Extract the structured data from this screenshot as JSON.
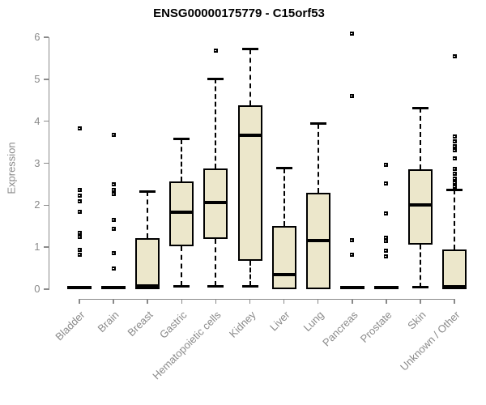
{
  "chart_data": {
    "type": "boxplot",
    "title": "ENSG00000175779 - C15orf53",
    "xlabel": "",
    "ylabel": "Expression",
    "ylim": [
      0,
      6
    ],
    "yticks": [
      0,
      1,
      2,
      3,
      4,
      5,
      6
    ],
    "grid": false,
    "legend": "none",
    "categories": [
      "Bladder",
      "Brain",
      "Breast",
      "Gastric",
      "Hematopoietic cells",
      "Kidney",
      "Liver",
      "Lung",
      "Pancreas",
      "Prostate",
      "Skin",
      "Unknown / Other"
    ],
    "boxes": [
      {
        "category": "Bladder",
        "low": 0,
        "q1": 0,
        "median": 0.04,
        "q3": 0.08,
        "high": 0.08,
        "outliers": [
          3.82,
          2.37,
          2.22,
          2.1,
          1.85,
          1.35,
          1.25,
          0.93,
          0.82
        ]
      },
      {
        "category": "Brain",
        "low": 0,
        "q1": 0,
        "median": 0.04,
        "q3": 0.08,
        "high": 0.08,
        "outliers": [
          3.67,
          2.5,
          2.36,
          2.26,
          1.64,
          1.43,
          0.85,
          0.49
        ]
      },
      {
        "category": "Breast",
        "low": 0,
        "q1": 0,
        "median": 0.08,
        "q3": 1.22,
        "high": 2.33,
        "outliers": []
      },
      {
        "category": "Gastric",
        "low": 0.07,
        "q1": 1.02,
        "median": 1.83,
        "q3": 2.57,
        "high": 3.57,
        "outliers": []
      },
      {
        "category": "Hematopoietic cells",
        "low": 0.07,
        "q1": 1.2,
        "median": 2.06,
        "q3": 2.87,
        "high": 5.01,
        "outliers": [
          5.68
        ]
      },
      {
        "category": "Kidney",
        "low": 0.07,
        "q1": 0.68,
        "median": 3.67,
        "q3": 4.37,
        "high": 5.72,
        "outliers": []
      },
      {
        "category": "Liver",
        "low": 0,
        "q1": 0,
        "median": 0.35,
        "q3": 1.5,
        "high": 2.88,
        "outliers": []
      },
      {
        "category": "Lung",
        "low": 0,
        "q1": 0,
        "median": 1.16,
        "q3": 2.29,
        "high": 3.94,
        "outliers": []
      },
      {
        "category": "Pancreas",
        "low": 0,
        "q1": 0,
        "median": 0.04,
        "q3": 0.08,
        "high": 0.08,
        "outliers": [
          6.08,
          4.61,
          1.16,
          0.82
        ]
      },
      {
        "category": "Prostate",
        "low": 0,
        "q1": 0,
        "median": 0.04,
        "q3": 0.08,
        "high": 0.08,
        "outliers": [
          2.97,
          2.51,
          1.81,
          1.23,
          1.14,
          0.91,
          0.79
        ]
      },
      {
        "category": "Skin",
        "low": 0.04,
        "q1": 1.06,
        "median": 2.01,
        "q3": 2.85,
        "high": 4.32,
        "outliers": []
      },
      {
        "category": "Unknown / Other",
        "low": 0,
        "q1": 0,
        "median": 0.05,
        "q3": 0.95,
        "high": 2.37,
        "outliers": [
          5.54,
          3.63,
          3.52,
          3.41,
          3.3,
          3.11,
          2.86,
          2.74,
          2.63,
          2.53,
          2.45
        ]
      }
    ],
    "colors": {
      "box_fill": "#ece7cb",
      "box_border": "#000000",
      "median": "#000000",
      "whisker": "#000000",
      "axis": "#8a8a8a",
      "tick_label": "#8a8a8a",
      "title": "#000000",
      "background": "#ffffff"
    }
  }
}
